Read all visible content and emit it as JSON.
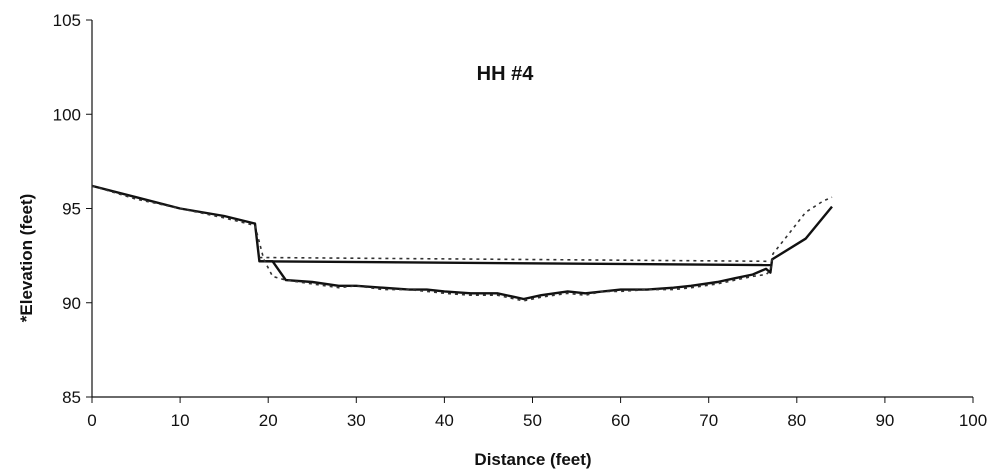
{
  "chart_data": {
    "type": "line",
    "title": "HH #4",
    "xlabel": "Distance (feet)",
    "ylabel": "*Elevation (feet)",
    "xlim": [
      0,
      100
    ],
    "ylim": [
      85,
      105
    ],
    "xticks": [
      0,
      10,
      20,
      30,
      40,
      50,
      60,
      70,
      80,
      90,
      100
    ],
    "yticks": [
      85,
      90,
      95,
      100,
      105
    ],
    "grid": false,
    "legend": "none",
    "series": [
      {
        "style": "solid",
        "color": "#111111",
        "points": [
          [
            0,
            96.2
          ],
          [
            5,
            95.6
          ],
          [
            10,
            95.0
          ],
          [
            15,
            94.6
          ],
          [
            18.5,
            94.2
          ],
          [
            19,
            92.2
          ],
          [
            20.5,
            92.2
          ],
          [
            22,
            91.2
          ],
          [
            25,
            91.1
          ],
          [
            28,
            90.9
          ],
          [
            30,
            90.9
          ],
          [
            33,
            90.8
          ],
          [
            36,
            90.7
          ],
          [
            38,
            90.7
          ],
          [
            40,
            90.6
          ],
          [
            43,
            90.5
          ],
          [
            46,
            90.5
          ],
          [
            48,
            90.3
          ],
          [
            49,
            90.2
          ],
          [
            51,
            90.4
          ],
          [
            54,
            90.6
          ],
          [
            56,
            90.5
          ],
          [
            58,
            90.6
          ],
          [
            60,
            90.7
          ],
          [
            63,
            90.7
          ],
          [
            66,
            90.8
          ],
          [
            68,
            90.9
          ],
          [
            71,
            91.1
          ],
          [
            73,
            91.3
          ],
          [
            75,
            91.5
          ],
          [
            76.5,
            91.8
          ],
          [
            77,
            91.6
          ],
          [
            77.2,
            92.3
          ],
          [
            81,
            93.4
          ],
          [
            84,
            95.1
          ]
        ]
      },
      {
        "style": "solid",
        "color": "#111111",
        "points": [
          [
            19,
            92.2
          ],
          [
            77,
            92.0
          ]
        ]
      },
      {
        "style": "dotted",
        "color": "#333333",
        "points": [
          [
            0,
            96.2
          ],
          [
            5,
            95.5
          ],
          [
            10,
            95.0
          ],
          [
            15,
            94.5
          ],
          [
            18.5,
            94.1
          ],
          [
            19.5,
            92.3
          ],
          [
            20.5,
            91.4
          ],
          [
            22,
            91.2
          ],
          [
            25,
            91.0
          ],
          [
            28,
            90.8
          ],
          [
            30,
            90.9
          ],
          [
            33,
            90.7
          ],
          [
            36,
            90.7
          ],
          [
            38,
            90.6
          ],
          [
            40,
            90.5
          ],
          [
            43,
            90.4
          ],
          [
            46,
            90.4
          ],
          [
            48,
            90.2
          ],
          [
            49,
            90.1
          ],
          [
            51,
            90.3
          ],
          [
            54,
            90.5
          ],
          [
            56,
            90.4
          ],
          [
            58,
            90.6
          ],
          [
            60,
            90.6
          ],
          [
            63,
            90.7
          ],
          [
            66,
            90.7
          ],
          [
            68,
            90.8
          ],
          [
            71,
            91.0
          ],
          [
            73,
            91.2
          ],
          [
            75,
            91.4
          ],
          [
            76.5,
            91.5
          ],
          [
            77,
            91.7
          ],
          [
            77.3,
            92.6
          ],
          [
            79,
            93.6
          ],
          [
            81,
            94.8
          ],
          [
            83,
            95.4
          ],
          [
            84,
            95.6
          ]
        ]
      },
      {
        "style": "dotted",
        "color": "#333333",
        "points": [
          [
            19,
            92.4
          ],
          [
            77,
            92.2
          ]
        ]
      }
    ]
  }
}
